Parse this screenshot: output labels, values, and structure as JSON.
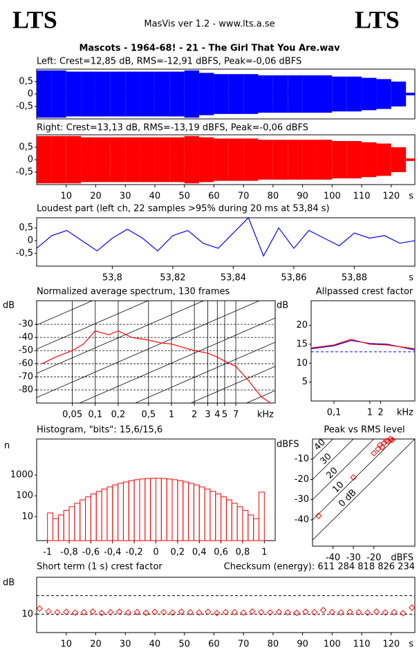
{
  "header": {
    "logo_left": "LTS",
    "logo_right": "LTS",
    "app": "MasVis ver 1.2 - www.lts.a.se",
    "file": "Mascots - 1964-68! - 21 - The Girl That You Are.wav"
  },
  "chart_data": [
    {
      "type": "waveform",
      "title": "Left: Crest=12,85 dB, RMS=-12,91 dBFS, Peak=-0,06 dBFS",
      "color": "#0000ff",
      "x": [
        0,
        5,
        10,
        15,
        20,
        25,
        30,
        35,
        40,
        45,
        50,
        55,
        60,
        65,
        70,
        75,
        80,
        85,
        90,
        95,
        100,
        105,
        110,
        115,
        120,
        125
      ],
      "values": [
        0.95,
        0.95,
        0.9,
        0.9,
        0.9,
        0.9,
        0.9,
        0.9,
        0.9,
        0.9,
        0.95,
        0.85,
        0.8,
        0.8,
        0.8,
        0.75,
        0.75,
        0.75,
        0.75,
        0.75,
        0.7,
        0.7,
        0.65,
        0.6,
        0.5,
        0.05
      ],
      "xlim": [
        0,
        128
      ],
      "ylim": [
        -1,
        1
      ],
      "yticks": [
        {
          "value": 0.5,
          "label": "0,5"
        },
        0,
        {
          "value": -0.5,
          "label": "-0,5"
        }
      ]
    },
    {
      "type": "waveform",
      "title": "Right: Crest=13,13 dB, RMS=-13,19 dBFS, Peak=-0,06 dBFS",
      "color": "#ff0000",
      "x": [
        0,
        5,
        10,
        15,
        20,
        25,
        30,
        35,
        40,
        45,
        50,
        55,
        60,
        65,
        70,
        75,
        80,
        85,
        90,
        95,
        100,
        105,
        110,
        115,
        120,
        125
      ],
      "values": [
        0.95,
        0.95,
        0.95,
        0.9,
        0.9,
        0.9,
        0.9,
        0.9,
        0.9,
        0.9,
        0.95,
        0.9,
        0.85,
        0.85,
        0.85,
        0.8,
        0.8,
        0.8,
        0.8,
        0.8,
        0.75,
        0.75,
        0.7,
        0.65,
        0.5,
        0.05
      ],
      "xlim": [
        0,
        128
      ],
      "ylim": [
        -1,
        1
      ],
      "yticks": [
        {
          "value": 0.5,
          "label": "0,5"
        },
        0,
        {
          "value": -0.5,
          "label": "-0,5"
        }
      ],
      "xticks": [
        10,
        20,
        30,
        40,
        50,
        60,
        70,
        80,
        90,
        100,
        110,
        120
      ],
      "xlabel": "s"
    },
    {
      "type": "line",
      "title": "Loudest part (left  ch, 22 samples >95% during 20 ms at 53,84 s)",
      "color": "#0000ff",
      "x": [
        53.775,
        53.78,
        53.785,
        53.79,
        53.795,
        53.8,
        53.805,
        53.81,
        53.815,
        53.82,
        53.825,
        53.83,
        53.835,
        53.84,
        53.845,
        53.85,
        53.855,
        53.86,
        53.865,
        53.87,
        53.875,
        53.88,
        53.885,
        53.89,
        53.895,
        53.9
      ],
      "values": [
        -0.3,
        0.2,
        0.4,
        0.0,
        -0.4,
        0.1,
        0.45,
        0.1,
        -0.4,
        0.2,
        0.4,
        -0.1,
        -0.3,
        0.3,
        0.9,
        -0.6,
        0.5,
        -0.3,
        0.4,
        0.1,
        -0.2,
        0.3,
        0.1,
        0.2,
        -0.1,
        0.0
      ],
      "xlim": [
        53.775,
        53.9
      ],
      "ylim": [
        -1,
        0.9
      ],
      "yticks": [
        {
          "value": 0.5,
          "label": "0,5"
        },
        0,
        {
          "value": -0.5,
          "label": "-0,5"
        }
      ],
      "xticks": [
        {
          "value": 53.8,
          "label": "53,8"
        },
        {
          "value": 53.82,
          "label": "53,82"
        },
        {
          "value": 53.84,
          "label": "53,84"
        },
        {
          "value": 53.86,
          "label": "53,86"
        },
        {
          "value": 53.88,
          "label": "53,88"
        }
      ],
      "xlabel": "s"
    },
    {
      "type": "line",
      "title": "Normalized average spectrum, 130 frames",
      "color": "#ff0000",
      "xlog": true,
      "grid": true,
      "x": [
        0.02,
        0.03,
        0.05,
        0.07,
        0.1,
        0.15,
        0.2,
        0.3,
        0.5,
        0.7,
        1,
        1.5,
        2,
        3,
        4,
        5,
        7,
        10,
        15,
        20
      ],
      "values": [
        -60,
        -55,
        -50,
        -45,
        -35,
        -38,
        -35,
        -40,
        -42,
        -44,
        -45,
        -48,
        -50,
        -52,
        -55,
        -58,
        -62,
        -72,
        -85,
        -90
      ],
      "xlim": [
        0.017,
        23
      ],
      "ylim": [
        -90,
        -12
      ],
      "yticks": [
        -30,
        -40,
        -50,
        -60,
        -70,
        -80
      ],
      "xticks": [
        {
          "value": 0.05,
          "label": "0,05"
        },
        {
          "value": 0.1,
          "label": "0,1"
        },
        {
          "value": 0.2,
          "label": "0,2"
        },
        {
          "value": 0.5,
          "label": "0,5"
        },
        1,
        2,
        3,
        4,
        5,
        7
      ],
      "xlabel": "kHz",
      "ylabel": "dB"
    },
    {
      "type": "line",
      "title": "Allpassed crest factor",
      "xlog": true,
      "x": [
        0.023,
        0.1,
        0.3,
        1,
        3,
        18
      ],
      "series": [
        {
          "color": "#0000ff",
          "values": [
            13.8,
            14.6,
            16.0,
            15.2,
            15.0,
            13.5
          ]
        },
        {
          "color": "#ff0000",
          "values": [
            14,
            14.8,
            16.3,
            15,
            14.8,
            13.8
          ]
        }
      ],
      "reference_lines": [
        13
      ],
      "xlim": [
        0.023,
        18
      ],
      "ylim": [
        0,
        26.5
      ],
      "yticks": [
        20,
        15,
        10,
        5
      ],
      "xticks": [
        {
          "value": 0.1,
          "label": "0,1"
        },
        1,
        2
      ],
      "xlabel": "kHz",
      "ylabel": "dB"
    },
    {
      "type": "histogram",
      "title": "Histogram, \"bits\": 15,6/15,6",
      "color": "#ff0000",
      "ylog": true,
      "bins": [
        -1,
        -0.95,
        -0.9,
        -0.85,
        -0.8,
        -0.75,
        -0.7,
        -0.65,
        -0.6,
        -0.55,
        -0.5,
        -0.45,
        -0.4,
        -0.35,
        -0.3,
        -0.25,
        -0.2,
        -0.15,
        -0.1,
        -0.05,
        0,
        0.05,
        0.1,
        0.15,
        0.2,
        0.25,
        0.3,
        0.35,
        0.4,
        0.45,
        0.5,
        0.55,
        0.6,
        0.65,
        0.7,
        0.75,
        0.8,
        0.85,
        0.9,
        0.95,
        1
      ],
      "values": [
        15,
        8,
        12,
        20,
        30,
        44,
        64,
        89,
        123,
        164,
        213,
        270,
        334,
        401,
        470,
        536,
        596,
        645,
        680,
        698,
        698,
        680,
        645,
        596,
        536,
        470,
        401,
        334,
        270,
        213,
        164,
        123,
        89,
        64,
        44,
        30,
        20,
        12,
        8,
        150
      ],
      "xlim": [
        -1.1,
        1.1
      ],
      "ylim": [
        0.7,
        54000
      ],
      "yticks": [
        10,
        100,
        1000
      ],
      "xticks": [
        -1,
        {
          "value": -0.8,
          "label": "-0,8"
        },
        {
          "value": -0.6,
          "label": "-0,6"
        },
        {
          "value": -0.4,
          "label": "-0,4"
        },
        {
          "value": -0.2,
          "label": "-0,2"
        },
        0,
        {
          "value": 0.2,
          "label": "0,2"
        },
        {
          "value": 0.4,
          "label": "0,4"
        },
        {
          "value": 0.6,
          "label": "0,6"
        },
        {
          "value": 0.8,
          "label": "0,8"
        },
        1
      ],
      "ylabel": "n"
    },
    {
      "type": "scatter",
      "title": "Peak vs RMS level",
      "color": "#ff0000",
      "x": [
        -47,
        -30,
        -20,
        -18,
        -17,
        -16,
        -15,
        -14,
        -13,
        -12,
        -11
      ],
      "values": [
        -38,
        -19,
        -7,
        -5,
        -3,
        -4,
        -2,
        -1,
        -1,
        0,
        -0.5
      ],
      "crest_lines": [
        {
          "value": 40,
          "label": "40"
        },
        {
          "value": 30,
          "label": "30"
        },
        {
          "value": 20,
          "label": "20"
        },
        {
          "value": 10,
          "label": "10"
        },
        {
          "value": 0,
          "label": "0 dB"
        }
      ],
      "xlim": [
        -50,
        0
      ],
      "ylim": [
        -53,
        0
      ],
      "yticks": [
        -10,
        -20,
        -30,
        -40
      ],
      "xticks": [
        -40,
        -30,
        -20
      ],
      "xlabel": "dBFS",
      "ylabel": "dBFS"
    },
    {
      "type": "scatter",
      "title": "Short term (1 s) crest factor",
      "annotation": "Checksum (energy):  611 284 818 826 234",
      "color": "#ff0000",
      "x": [
        1,
        4,
        7,
        10,
        13,
        16,
        19,
        22,
        25,
        28,
        31,
        34,
        37,
        40,
        43,
        46,
        49,
        52,
        55,
        58,
        61,
        64,
        67,
        70,
        73,
        76,
        79,
        82,
        85,
        88,
        91,
        94,
        97,
        100,
        103,
        106,
        109,
        112,
        115,
        118,
        121,
        124,
        127
      ],
      "values": [
        13,
        11.5,
        11,
        11.2,
        10.8,
        11,
        11.4,
        10.6,
        11,
        11.3,
        10.9,
        11.1,
        10.7,
        11.2,
        11,
        10.8,
        11.3,
        11,
        10.9,
        11.2,
        10.6,
        11.1,
        11,
        10.8,
        11.4,
        11,
        10.9,
        11.2,
        11,
        10.7,
        11.3,
        11,
        12.2,
        11.1,
        10.9,
        11.2,
        11,
        10.8,
        11.3,
        10.9,
        11,
        10.5,
        13.5
      ],
      "reference_lines": [
        20,
        10
      ],
      "xlim": [
        0,
        128
      ],
      "ylim": [
        0,
        30
      ],
      "yticks": [
        10
      ],
      "xticks": [
        10,
        20,
        30,
        40,
        50,
        60,
        70,
        80,
        90,
        100,
        110,
        120
      ],
      "xlabel": "s",
      "ylabel": "dB"
    }
  ]
}
